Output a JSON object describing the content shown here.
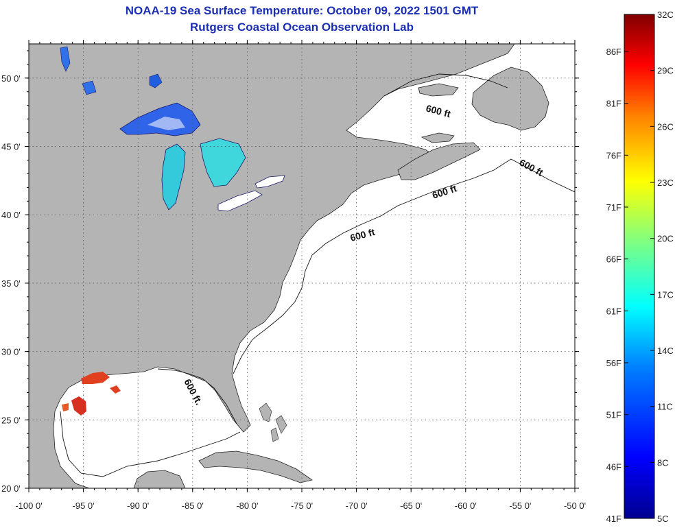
{
  "header": {
    "title": "NOAA-19 Sea Surface Temperature:  October 09, 2022 1501 GMT",
    "subtitle": "Rutgers Coastal Ocean Observation Lab"
  },
  "map": {
    "lon_range": [
      -100,
      -50
    ],
    "lat_range": [
      20,
      52.5
    ],
    "lon_ticks": [
      "-100 0'",
      "-95 0'",
      "-90 0'",
      "-85 0'",
      "-80 0'",
      "-75 0'",
      "-70 0'",
      "-65 0'",
      "-60 0'",
      "-55 0'",
      "-50 0'"
    ],
    "lat_ticks": [
      "20 0'",
      "25 0'",
      "30 0'",
      "35 0'",
      "40 0'",
      "45 0'",
      "50 0'"
    ],
    "grid": "dotted",
    "land_color": "#b4b4b4",
    "ocean_color": "#ffffff",
    "contour_labels": [
      "600 ft",
      "600 ft",
      "600 ft",
      "600 ft",
      "600 ft."
    ]
  },
  "colorbar": {
    "celsius_labels": [
      "32C",
      "29C",
      "26C",
      "23C",
      "20C",
      "17C",
      "14C",
      "11C",
      "8C",
      "5C"
    ],
    "fahrenheit_labels": [
      "86F",
      "81F",
      "76F",
      "71F",
      "66F",
      "61F",
      "56F",
      "51F",
      "46F",
      "41F"
    ],
    "range_c": [
      5,
      32
    ],
    "colors": [
      "#00008f",
      "#0000ff",
      "#0080ff",
      "#00ffff",
      "#80ff80",
      "#ffff00",
      "#ff8000",
      "#ff0000",
      "#800000"
    ]
  }
}
